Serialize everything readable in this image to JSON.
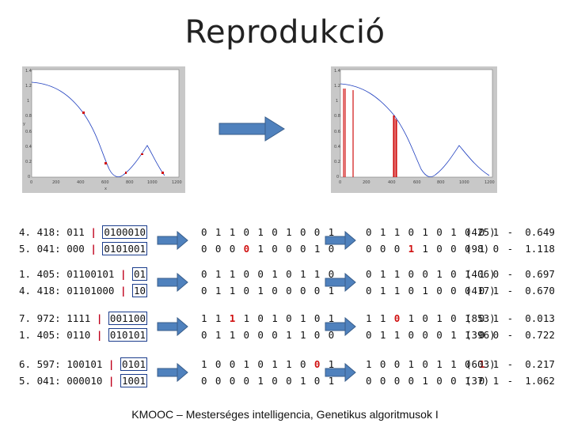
{
  "title": "Reprodukció",
  "footer": "KMOOC – Mesterséges intelligencia, Genetikus algoritmusok I",
  "plots": {
    "left": {
      "y_ticks": [
        "1.4",
        "1.2",
        "1",
        "0.8",
        "0.6",
        "0.4",
        "0.2",
        "0"
      ],
      "x_ticks": [
        "0",
        "200",
        "400",
        "600",
        "800",
        "1000",
        "1200"
      ],
      "ylabel": "y",
      "xlabel": "x"
    },
    "right": {
      "y_ticks": [
        "1.4",
        "1.2",
        "1",
        "0.8",
        "0.6",
        "0.4",
        "0.2",
        "0"
      ],
      "x_ticks": [
        "0",
        "200",
        "400",
        "600",
        "800",
        "1000",
        "1200"
      ]
    }
  },
  "rows": [
    {
      "p1": {
        "prefix": "4. 418: ",
        "head": "011",
        "tail": "0100010"
      },
      "p2": {
        "prefix": "5. 041: ",
        "head": "000",
        "tail": "0101001"
      },
      "c1": [
        "0 1 1 0 1 0 1 0 0 1"
      ],
      "c2": [
        "0 0 0 ",
        "0",
        " 1 0 0 0 1 0"
      ],
      "r1": [
        "0 1 1 0 1 0 1 0 0 1"
      ],
      "r2": [
        "0 0 0 ",
        "1",
        " 1 0 0 0 1 0"
      ],
      "v1": "(425)  -  0.649",
      "v2": "(98)   -  1.118"
    },
    {
      "p1": {
        "prefix": "1. 405: ",
        "head": "01100101",
        "tail": "01"
      },
      "p2": {
        "prefix": "4. 418: ",
        "head": "01101000",
        "tail": "10"
      },
      "c1": [
        "0 1 1 0 0 1 0 1 1 0"
      ],
      "c2": [
        "0 1 1 0 1 0 0 0 0 1"
      ],
      "r1": [
        "0 1 1 0 0 1 0 1 1 0"
      ],
      "r2": [
        "0 1 1 0 1 0 0 0 0 1"
      ],
      "v1": "(406)  -  0.697",
      "v2": "(417)  -  0.670"
    },
    {
      "p1": {
        "prefix": "7. 972: ",
        "head": "1111",
        "tail": "001100"
      },
      "p2": {
        "prefix": "1. 405: ",
        "head": "0110",
        "tail": "010101"
      },
      "c1": [
        "1 1 ",
        "1",
        " 1 0 1 0 1 0 1"
      ],
      "c2": [
        "0 1 1 0 0 0 1 1 0 0"
      ],
      "r1": [
        "1 1 ",
        "0",
        " 1 0 1 0 1 0 1"
      ],
      "r2": [
        "0 1 1 0 0 0 1 1 0 0"
      ],
      "v1": "(853)  -  0.013",
      "v2": "(396)  -  0.722"
    },
    {
      "p1": {
        "prefix": "6. 597: ",
        "head": "100101",
        "tail": "0101"
      },
      "p2": {
        "prefix": "5. 041: ",
        "head": "000010",
        "tail": "1001"
      },
      "c1": [
        "1 0 0 1 0 1 1 0 ",
        "0",
        " 1"
      ],
      "c2": [
        "0 0 0 0 1 0 0 1 0 1"
      ],
      "r1": [
        "1 0 0 1 0 1 1 0 ",
        "1",
        " 1"
      ],
      "r2": [
        "0 0 0 0 1 0 0 1 0 1"
      ],
      "v1": "(603)  -  0.217",
      "v2": "(37)   -  1.062"
    }
  ],
  "bar": "|",
  "colors": {
    "accent": "#4f81bd",
    "mark": "#d01010",
    "bar": "#c0001c"
  }
}
